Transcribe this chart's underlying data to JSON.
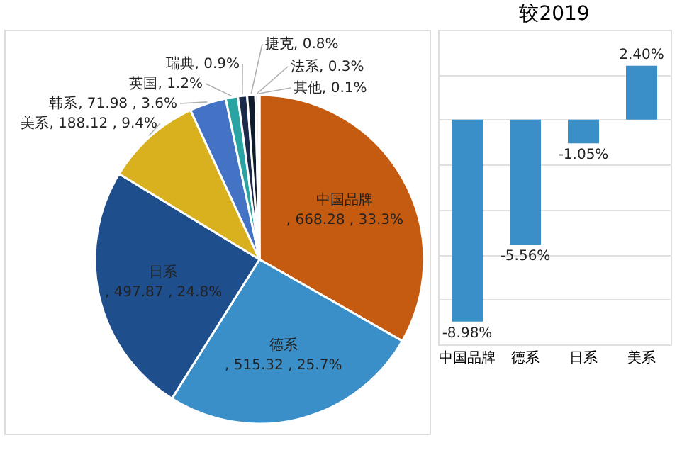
{
  "chart_data": [
    {
      "type": "pie",
      "categories": [
        "中国品牌",
        "德系",
        "日系",
        "美系",
        "韩系",
        "英国",
        "瑞典",
        "捷克",
        "法系",
        "其他"
      ],
      "values": [
        33.3,
        25.7,
        24.8,
        9.4,
        3.6,
        1.2,
        0.9,
        0.8,
        0.3,
        0.1
      ],
      "colors": [
        "#c55a11",
        "#3a8fc8",
        "#1f4e8c",
        "#d9b11e",
        "#4472c4",
        "#2aa3a3",
        "#1b2a4a",
        "#0d1b2a",
        "#7f7f7f",
        "#a9c4e0"
      ],
      "value_labels": [
        ", 668.28 , 33.3%",
        ", 515.32 , 25.7%",
        ", 497.87 , 24.8%",
        ", 188.12 , 9.4%",
        ", 71.98 , 3.6%",
        ", 1.2%",
        ", 0.9%",
        ", 0.8%",
        ", 0.3%",
        ", 0.1%"
      ]
    },
    {
      "type": "bar",
      "title": "较2019",
      "categories": [
        "中国品牌",
        "德系",
        "日系",
        "美系"
      ],
      "values": [
        -8.98,
        -5.56,
        -1.05,
        2.4
      ],
      "value_labels": [
        "-8.98%",
        "-5.56%",
        "-1.05%",
        "2.40%"
      ],
      "color": "#3a8fc8",
      "grid": "y",
      "tick_labels": "x"
    }
  ]
}
